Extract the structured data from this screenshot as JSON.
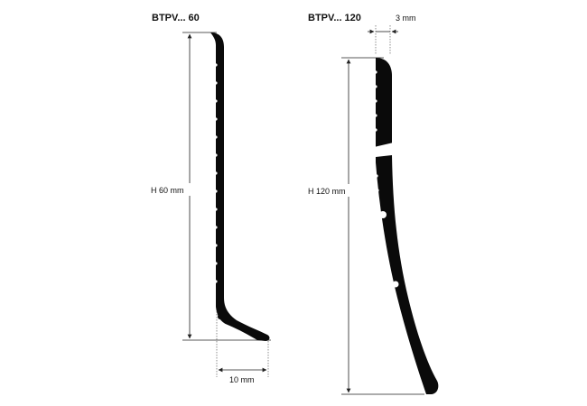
{
  "profiles": [
    {
      "title": "BTPV... 60",
      "height_label": "H 60 mm",
      "width_label": "10 mm"
    },
    {
      "title": "BTPV... 120",
      "height_label": "H 120 mm",
      "thickness_label": "3 mm"
    }
  ],
  "colors": {
    "profile_fill": "#0a0a0a",
    "dimension_line": "#222222",
    "background": "#ffffff"
  }
}
